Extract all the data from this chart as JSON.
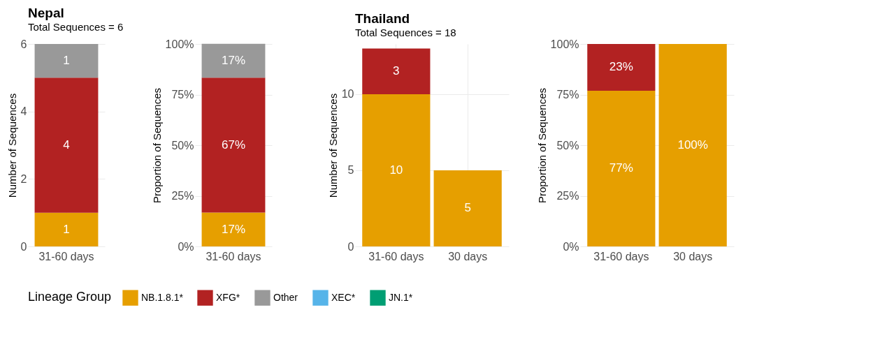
{
  "chart_data": [
    {
      "type": "bar",
      "title": "Nepal",
      "subtitle": "Total Sequences = 6",
      "stacked": true,
      "categories": [
        "31-60 days"
      ],
      "ylabel": "Number of Sequences",
      "ylim": [
        0,
        6
      ],
      "yticks": [
        0,
        2,
        4,
        6
      ],
      "grid": true,
      "data_labels": true,
      "legend": "bottom",
      "legend_title": "Lineage Group",
      "series": [
        {
          "name": "NB.1.8.1*",
          "color": "#e69f00",
          "values": [
            1
          ]
        },
        {
          "name": "XFG*",
          "color": "#b22222",
          "values": [
            4
          ]
        },
        {
          "name": "Other",
          "color": "#999999",
          "values": [
            1
          ]
        },
        {
          "name": "XEC*",
          "color": "#56b4e9",
          "values": [
            null
          ]
        },
        {
          "name": "JN.1*",
          "color": "#009e73",
          "values": [
            null
          ]
        }
      ]
    },
    {
      "type": "bar",
      "stacked": true,
      "categories": [
        "31-60 days"
      ],
      "ylabel": "Proportion of Sequences",
      "ylim": [
        0,
        100
      ],
      "yticks": [
        {
          "value": 0,
          "label": "0%"
        },
        {
          "value": 25,
          "label": "25%"
        },
        {
          "value": 50,
          "label": "50%"
        },
        {
          "value": 75,
          "label": "75%"
        },
        {
          "value": 100,
          "label": "100%"
        }
      ],
      "grid": true,
      "series": [
        {
          "color": "#e69f00",
          "values": [
            16.7
          ],
          "value_labels": [
            "17%"
          ]
        },
        {
          "color": "#b22222",
          "values": [
            66.7
          ],
          "value_labels": [
            "67%"
          ]
        },
        {
          "color": "#999999",
          "values": [
            16.7
          ],
          "value_labels": [
            "17%"
          ]
        }
      ]
    },
    {
      "type": "bar",
      "title": "Thailand",
      "subtitle": "Total Sequences = 18",
      "stacked": true,
      "categories": [
        "31-60 days",
        "30 days"
      ],
      "ylabel": "Number of Sequences",
      "ylim": [
        0,
        13.3
      ],
      "yticks": [
        0,
        5,
        10
      ],
      "grid": true,
      "data_labels": true,
      "series": [
        {
          "color": "#e69f00",
          "values": [
            10,
            5
          ]
        },
        {
          "color": "#b22222",
          "values": [
            3,
            null
          ]
        }
      ]
    },
    {
      "type": "bar",
      "stacked": true,
      "categories": [
        "31-60 days",
        "30 days"
      ],
      "ylabel": "Proportion of Sequences",
      "ylim": [
        0,
        100
      ],
      "yticks": [
        {
          "value": 0,
          "label": "0%"
        },
        {
          "value": 25,
          "label": "25%"
        },
        {
          "value": 50,
          "label": "50%"
        },
        {
          "value": 75,
          "label": "75%"
        },
        {
          "value": 100,
          "label": "100%"
        }
      ],
      "grid": true,
      "series": [
        {
          "color": "#e69f00",
          "values": [
            76.9,
            100
          ],
          "value_labels": [
            "77%",
            "100%"
          ]
        },
        {
          "color": "#b22222",
          "values": [
            23.1,
            null
          ],
          "value_labels": [
            "23%",
            null
          ]
        }
      ]
    }
  ]
}
